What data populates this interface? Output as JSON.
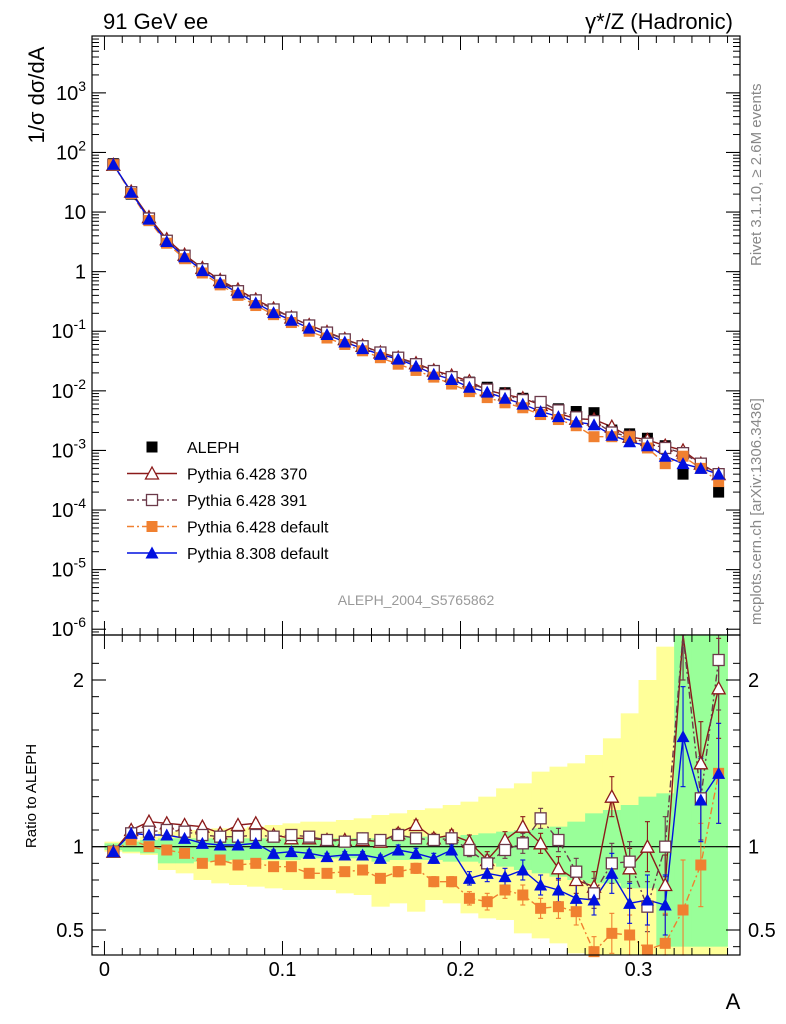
{
  "header": {
    "left": "91 GeV ee",
    "right": "γ*/Z (Hadronic)"
  },
  "side_text": {
    "rivet": "Rivet 3.1.10, ≥ 2.6M events",
    "mcplots": "mcplots.cern.ch [arXiv:1306.3436]"
  },
  "analysis_label": "ALEPH_2004_S5765862",
  "chart_data": [
    {
      "type": "line",
      "panel": "main",
      "ylabel": "1/σ  dσ/dA",
      "yscale": "log",
      "ylim": [
        8e-07,
        9000
      ],
      "xlim": [
        -0.007,
        0.357
      ],
      "ytick_labels": [
        "10^-6",
        "10^-5",
        "10^-4",
        "10^-3",
        "10^-2",
        "10^-1",
        "1",
        "10",
        "10^2",
        "10^3"
      ],
      "x": [
        0.005,
        0.015,
        0.025,
        0.035,
        0.045,
        0.055,
        0.065,
        0.075,
        0.085,
        0.095,
        0.105,
        0.115,
        0.125,
        0.135,
        0.145,
        0.155,
        0.165,
        0.175,
        0.185,
        0.195,
        0.205,
        0.215,
        0.225,
        0.235,
        0.245,
        0.255,
        0.265,
        0.275,
        0.285,
        0.295,
        0.305,
        0.315,
        0.325,
        0.335,
        0.345
      ],
      "series": [
        {
          "name": "ALEPH",
          "color": "#000000",
          "marker": "filled-square",
          "line": "none",
          "values": [
            65,
            20,
            7.2,
            3.05,
            1.72,
            1.05,
            0.66,
            0.44,
            0.3,
            0.215,
            0.16,
            0.12,
            0.092,
            0.071,
            0.055,
            0.044,
            0.035,
            0.027,
            0.021,
            0.0165,
            0.014,
            0.0115,
            0.0093,
            0.0075,
            0.006,
            0.005,
            0.0045,
            0.0043,
            0.0022,
            0.0019,
            0.0016,
            0.0012,
            0.0004,
            0.0006,
            0.0002
          ]
        },
        {
          "name": "Pythia 6.428 370",
          "color": "#8B1A1A",
          "marker": "open-triangle",
          "line": "solid",
          "values": [
            62,
            22,
            8.2,
            3.5,
            1.92,
            1.15,
            0.72,
            0.5,
            0.34,
            0.24,
            0.17,
            0.127,
            0.097,
            0.074,
            0.057,
            0.044,
            0.036,
            0.029,
            0.022,
            0.018,
            0.0145,
            0.0102,
            0.0087,
            0.0075,
            0.0058,
            0.0042,
            0.0034,
            0.0033,
            0.0025,
            0.0017,
            0.0015,
            0.0012,
            0.001,
            0.0006,
            0.0004
          ]
        },
        {
          "name": "Pythia 6.428 391",
          "color": "#6B3A4A",
          "marker": "open-square",
          "line": "dashdot",
          "values": [
            62,
            21.5,
            7.8,
            3.3,
            1.85,
            1.1,
            0.7,
            0.47,
            0.33,
            0.232,
            0.17,
            0.125,
            0.095,
            0.073,
            0.056,
            0.044,
            0.036,
            0.028,
            0.0215,
            0.017,
            0.0135,
            0.0105,
            0.0085,
            0.007,
            0.0065,
            0.0047,
            0.0036,
            0.0031,
            0.002,
            0.0017,
            0.0013,
            0.0011,
            0.0009,
            0.0006,
            0.0004
          ]
        },
        {
          "name": "Pythia 6.428 default",
          "color": "#F08030",
          "marker": "filled-square",
          "line": "dashdot",
          "values": [
            62,
            20.5,
            7.2,
            3.0,
            1.65,
            0.95,
            0.6,
            0.4,
            0.27,
            0.19,
            0.14,
            0.1,
            0.077,
            0.06,
            0.047,
            0.036,
            0.028,
            0.022,
            0.017,
            0.013,
            0.0097,
            0.0077,
            0.0063,
            0.0052,
            0.004,
            0.0033,
            0.0026,
            0.0017,
            0.0017,
            0.0017,
            0.0011,
            0.0006,
            0.0008,
            0.0005,
            0.0003
          ]
        },
        {
          "name": "Pythia 8.308 default",
          "color": "#0010E0",
          "marker": "filled-triangle",
          "line": "solid",
          "values": [
            63,
            21.5,
            7.6,
            3.2,
            1.78,
            1.04,
            0.65,
            0.44,
            0.3,
            0.205,
            0.153,
            0.113,
            0.088,
            0.066,
            0.051,
            0.041,
            0.034,
            0.026,
            0.019,
            0.0155,
            0.0115,
            0.0095,
            0.0075,
            0.006,
            0.0045,
            0.0037,
            0.003,
            0.0027,
            0.0018,
            0.0014,
            0.0012,
            0.0008,
            0.0006,
            0.0005,
            0.0004
          ]
        }
      ]
    },
    {
      "type": "line",
      "panel": "ratio",
      "ylabel": "Ratio to ALEPH",
      "xlabel": "A",
      "ylim": [
        0.35,
        2.27
      ],
      "xlim": [
        -0.007,
        0.357
      ],
      "x_ticks": [
        0,
        0.1,
        0.2,
        0.3
      ],
      "x_tick_labels": [
        "0",
        "0.1",
        "0.2",
        "0.3"
      ],
      "y_ticks": [
        0.5,
        1,
        2
      ],
      "y_tick_labels": [
        "0.5",
        "1",
        "2"
      ],
      "reference_line": 1,
      "band_x_edges": [
        0,
        0.01,
        0.02,
        0.03,
        0.04,
        0.05,
        0.06,
        0.07,
        0.08,
        0.09,
        0.1,
        0.11,
        0.12,
        0.13,
        0.14,
        0.15,
        0.16,
        0.17,
        0.18,
        0.19,
        0.2,
        0.21,
        0.22,
        0.23,
        0.24,
        0.25,
        0.26,
        0.27,
        0.28,
        0.29,
        0.3,
        0.31,
        0.32,
        0.33,
        0.34,
        0.35
      ],
      "stat_band": {
        "color": "#99FF99",
        "lo": [
          0.98,
          0.97,
          0.96,
          0.9,
          0.9,
          0.91,
          0.91,
          0.92,
          0.92,
          0.92,
          0.92,
          0.93,
          0.93,
          0.93,
          0.93,
          0.91,
          0.92,
          0.92,
          0.92,
          0.91,
          0.91,
          0.9,
          0.88,
          0.86,
          0.84,
          0.82,
          0.8,
          0.78,
          0.78,
          0.75,
          0.75,
          0.4,
          0.4,
          0.4,
          0.4
        ],
        "hi": [
          1.02,
          1.03,
          1.04,
          1.05,
          1.05,
          1.05,
          1.05,
          1.05,
          1.05,
          1.05,
          1.05,
          1.05,
          1.05,
          1.05,
          1.05,
          1.05,
          1.06,
          1.06,
          1.06,
          1.06,
          1.07,
          1.08,
          1.09,
          1.1,
          1.11,
          1.12,
          1.15,
          1.2,
          1.22,
          1.25,
          1.3,
          1.32,
          2.3,
          2.3,
          2.3
        ]
      },
      "syst_band": {
        "color": "#FFFF99",
        "lo": [
          0.97,
          0.96,
          0.95,
          0.86,
          0.84,
          0.8,
          0.78,
          0.77,
          0.76,
          0.75,
          0.74,
          0.74,
          0.74,
          0.72,
          0.71,
          0.64,
          0.66,
          0.61,
          0.68,
          0.66,
          0.6,
          0.57,
          0.56,
          0.48,
          0.45,
          0.42,
          0.36,
          0.35,
          0.35,
          0.35,
          0.35,
          0.35,
          0.35,
          0.35,
          0.35
        ],
        "hi": [
          1.03,
          1.04,
          1.06,
          1.09,
          1.1,
          1.1,
          1.11,
          1.11,
          1.12,
          1.13,
          1.14,
          1.15,
          1.15,
          1.16,
          1.17,
          1.19,
          1.2,
          1.22,
          1.23,
          1.25,
          1.27,
          1.3,
          1.35,
          1.38,
          1.45,
          1.48,
          1.5,
          1.55,
          1.65,
          1.8,
          2.0,
          2.2,
          2.3,
          2.3,
          2.3
        ]
      },
      "series": [
        {
          "name": "Pythia 6.428 370",
          "color": "#8B1A1A",
          "marker": "open-triangle",
          "line": "solid",
          "values": [
            0.97,
            1.1,
            1.15,
            1.14,
            1.13,
            1.12,
            1.08,
            1.13,
            1.14,
            1.07,
            1.05,
            1.05,
            1.04,
            1.04,
            1.04,
            1.03,
            1.08,
            1.13,
            1.05,
            1.07,
            1.03,
            0.92,
            1.04,
            1.12,
            1.02,
            0.87,
            0.8,
            0.76,
            1.3,
            0.87,
            1.0,
            0.77,
            2.3,
            1.5,
            1.95
          ],
          "err": [
            0.02,
            0.02,
            0.02,
            0.02,
            0.02,
            0.02,
            0.02,
            0.02,
            0.02,
            0.02,
            0.02,
            0.02,
            0.02,
            0.02,
            0.02,
            0.02,
            0.03,
            0.03,
            0.03,
            0.03,
            0.04,
            0.05,
            0.05,
            0.06,
            0.06,
            0.07,
            0.08,
            0.09,
            0.12,
            0.12,
            0.15,
            0.18,
            0.3,
            0.25,
            0.3
          ]
        },
        {
          "name": "Pythia 6.428 391",
          "color": "#6B3A4A",
          "marker": "open-square",
          "line": "dashdot",
          "values": [
            0.97,
            1.08,
            1.09,
            1.1,
            1.09,
            1.07,
            1.06,
            1.06,
            1.07,
            1.06,
            1.07,
            1.06,
            1.04,
            1.03,
            1.05,
            1.04,
            1.07,
            1.05,
            1.04,
            1.05,
            0.98,
            0.9,
            0.98,
            1.02,
            1.17,
            1.04,
            0.85,
            0.72,
            0.9,
            0.91,
            0.64,
            1.0,
            2.3,
            1.29,
            2.12
          ],
          "err": [
            0.02,
            0.02,
            0.02,
            0.02,
            0.02,
            0.02,
            0.02,
            0.02,
            0.02,
            0.02,
            0.02,
            0.02,
            0.02,
            0.02,
            0.02,
            0.02,
            0.03,
            0.03,
            0.03,
            0.03,
            0.04,
            0.05,
            0.05,
            0.06,
            0.06,
            0.07,
            0.08,
            0.09,
            0.12,
            0.12,
            0.15,
            0.18,
            0.3,
            0.25,
            0.3
          ]
        },
        {
          "name": "Pythia 6.428 default",
          "color": "#F08030",
          "marker": "filled-square",
          "line": "dashdot",
          "values": [
            0.97,
            1.04,
            1.0,
            0.98,
            0.96,
            0.9,
            0.92,
            0.89,
            0.9,
            0.88,
            0.88,
            0.84,
            0.84,
            0.85,
            0.86,
            0.81,
            0.85,
            0.87,
            0.79,
            0.79,
            0.69,
            0.67,
            0.74,
            0.71,
            0.63,
            0.64,
            0.61,
            0.37,
            0.48,
            0.47,
            0.38,
            0.42,
            0.62,
            0.89,
            1.44
          ],
          "err": [
            0.02,
            0.02,
            0.02,
            0.02,
            0.02,
            0.02,
            0.02,
            0.02,
            0.02,
            0.02,
            0.02,
            0.02,
            0.02,
            0.02,
            0.02,
            0.02,
            0.03,
            0.03,
            0.03,
            0.03,
            0.04,
            0.05,
            0.05,
            0.06,
            0.06,
            0.07,
            0.08,
            0.09,
            0.12,
            0.12,
            0.15,
            0.18,
            0.3,
            0.25,
            0.3
          ]
        },
        {
          "name": "Pythia 8.308 default",
          "color": "#0010E0",
          "marker": "filled-triangle",
          "line": "solid",
          "values": [
            0.97,
            1.08,
            1.07,
            1.07,
            1.05,
            1.02,
            1.01,
            1.01,
            1.02,
            0.96,
            0.97,
            0.96,
            0.94,
            0.95,
            0.95,
            0.93,
            0.98,
            0.96,
            0.93,
            0.98,
            0.81,
            0.84,
            0.82,
            0.86,
            0.77,
            0.74,
            0.69,
            0.68,
            0.84,
            0.66,
            0.68,
            0.65,
            1.66,
            1.28,
            1.44
          ],
          "err": [
            0.02,
            0.02,
            0.02,
            0.02,
            0.02,
            0.02,
            0.02,
            0.02,
            0.02,
            0.02,
            0.02,
            0.02,
            0.02,
            0.02,
            0.02,
            0.02,
            0.03,
            0.03,
            0.03,
            0.03,
            0.04,
            0.05,
            0.05,
            0.06,
            0.06,
            0.07,
            0.08,
            0.09,
            0.12,
            0.12,
            0.15,
            0.18,
            0.3,
            0.25,
            0.3
          ]
        }
      ]
    }
  ]
}
